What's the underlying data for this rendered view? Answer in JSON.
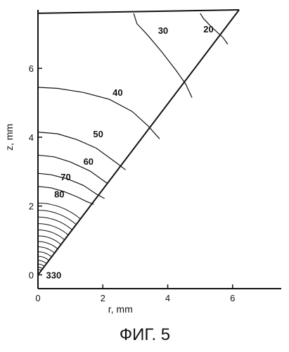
{
  "caption": "ФИГ. 5",
  "chart_data": {
    "type": "contour",
    "title": "",
    "xlabel": "r, mm",
    "ylabel": "z, mm",
    "xlim": [
      0,
      7.5
    ],
    "ylim": [
      -0.4,
      7.7
    ],
    "x_ticks": [
      0,
      2,
      4,
      6
    ],
    "y_ticks": [
      0,
      2,
      4,
      6
    ],
    "domain": {
      "apex": [
        0,
        0
      ],
      "cone_edge_end": [
        6.2,
        7.7
      ],
      "top": 7.6
    },
    "levels": [
      {
        "value": 330,
        "label": "330",
        "label_at": [
          0.25,
          -0.1
        ],
        "points": []
      },
      {
        "value": 80,
        "label": "80",
        "label_at": [
          0.5,
          2.25
        ],
        "points": [
          [
            0,
            2.57
          ],
          [
            0.4,
            2.53
          ],
          [
            0.8,
            2.42
          ],
          [
            1.2,
            2.27
          ],
          [
            1.5,
            2.13
          ],
          [
            1.72,
            2.05
          ]
        ]
      },
      {
        "value": 70,
        "label": "70",
        "label_at": [
          0.7,
          2.75
        ],
        "points": [
          [
            0,
            2.95
          ],
          [
            0.4,
            2.91
          ],
          [
            0.9,
            2.79
          ],
          [
            1.4,
            2.6
          ],
          [
            1.8,
            2.35
          ],
          [
            2.05,
            2.22
          ]
        ]
      },
      {
        "value": 60,
        "label": "60",
        "label_at": [
          1.4,
          3.2
        ],
        "points": [
          [
            0,
            3.48
          ],
          [
            0.5,
            3.43
          ],
          [
            1.0,
            3.28
          ],
          [
            1.6,
            3.02
          ],
          [
            2.15,
            2.65
          ]
        ]
      },
      {
        "value": 50,
        "label": "50",
        "label_at": [
          1.7,
          4.0
        ],
        "points": [
          [
            0,
            4.15
          ],
          [
            0.6,
            4.1
          ],
          [
            1.2,
            3.93
          ],
          [
            1.8,
            3.68
          ],
          [
            2.4,
            3.27
          ],
          [
            2.7,
            3.05
          ]
        ]
      },
      {
        "value": 40,
        "label": "40",
        "label_at": [
          2.3,
          5.2
        ],
        "points": [
          [
            0,
            5.45
          ],
          [
            0.6,
            5.42
          ],
          [
            1.4,
            5.3
          ],
          [
            2.2,
            5.1
          ],
          [
            2.9,
            4.75
          ],
          [
            3.4,
            4.32
          ],
          [
            3.75,
            3.95
          ]
        ]
      },
      {
        "value": 30,
        "label": "30",
        "label_at": [
          3.7,
          7.0
        ],
        "points": [
          [
            2.95,
            7.6
          ],
          [
            3.05,
            7.3
          ],
          [
            3.35,
            7.0
          ],
          [
            3.8,
            6.5
          ],
          [
            4.25,
            5.95
          ],
          [
            4.55,
            5.55
          ],
          [
            4.75,
            5.15
          ]
        ]
      },
      {
        "value": 20,
        "label": "20",
        "label_at": [
          5.1,
          7.05
        ],
        "points": [
          [
            5.0,
            7.6
          ],
          [
            5.1,
            7.45
          ],
          [
            5.35,
            7.2
          ],
          [
            5.7,
            6.9
          ],
          [
            5.85,
            6.7
          ]
        ]
      }
    ],
    "inner_contours_near_apex": 14,
    "grid": false,
    "legend": "none"
  }
}
